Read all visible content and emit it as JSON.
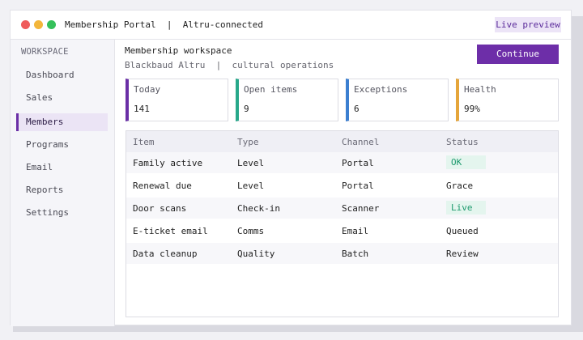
{
  "window": {
    "title": "Membership Portal  |  Altru-connected",
    "live_preview": "Live preview"
  },
  "sidebar": {
    "heading": "WORKSPACE",
    "items": [
      {
        "label": "Dashboard"
      },
      {
        "label": "Sales"
      },
      {
        "label": "Members"
      },
      {
        "label": "Programs"
      },
      {
        "label": "Email"
      },
      {
        "label": "Reports"
      },
      {
        "label": "Settings"
      }
    ],
    "active": "Members"
  },
  "main": {
    "title": "Membership workspace",
    "subtitle": "Blackbaud Altru  |  cultural operations",
    "continue_label": "Continue"
  },
  "cards": [
    {
      "label": "Today",
      "value": "141",
      "accent": "#6a2fa6"
    },
    {
      "label": "Open items",
      "value": "9",
      "accent": "#27a88a"
    },
    {
      "label": "Exceptions",
      "value": "6",
      "accent": "#3b7fd0"
    },
    {
      "label": "Health",
      "value": "99%",
      "accent": "#e5a53a"
    }
  ],
  "table": {
    "headers": [
      "Item",
      "Type",
      "Channel",
      "Status"
    ],
    "rows": [
      {
        "item": "Family active",
        "type": "Level",
        "channel": "Portal",
        "status": "OK"
      },
      {
        "item": "Renewal due",
        "type": "Level",
        "channel": "Portal",
        "status": "Grace"
      },
      {
        "item": "Door scans",
        "type": "Check-in",
        "channel": "Scanner",
        "status": "Live"
      },
      {
        "item": "E-ticket email",
        "type": "Comms",
        "channel": "Email",
        "status": "Queued"
      },
      {
        "item": "Data cleanup",
        "type": "Quality",
        "channel": "Batch",
        "status": "Review"
      }
    ]
  },
  "colors": {
    "brand": "#6d2ea8",
    "ok_badge_bg": "#e4f5ee",
    "ok_badge_text": "#1e9a6e"
  }
}
